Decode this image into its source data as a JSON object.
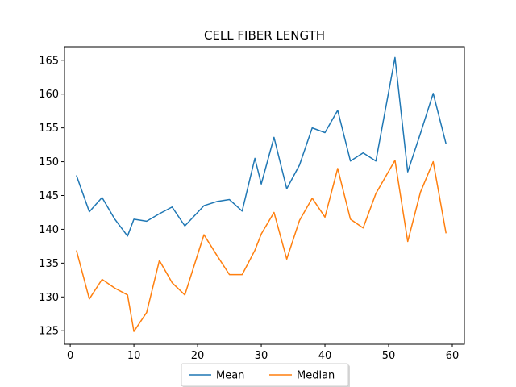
{
  "chart_data": {
    "type": "line",
    "title": "CELL FIBER LENGTH",
    "xlabel": "",
    "ylabel": "",
    "xlim": [
      -0.9,
      61.9
    ],
    "ylim": [
      123.0,
      167.0
    ],
    "xticks": [
      0,
      10,
      20,
      30,
      40,
      50,
      60
    ],
    "yticks": [
      125,
      130,
      135,
      140,
      145,
      150,
      155,
      160,
      165
    ],
    "grid": false,
    "legend_position": "bottom-center",
    "x": [
      1,
      3,
      5,
      7,
      9,
      10,
      12,
      14,
      16,
      18,
      21,
      23,
      25,
      27,
      29,
      30,
      32,
      34,
      36,
      38,
      40,
      42,
      44,
      46,
      48,
      51,
      53,
      55,
      57,
      59
    ],
    "series": [
      {
        "name": "Mean",
        "color": "#1f77b4",
        "values": [
          147.9,
          142.6,
          144.7,
          141.5,
          139.0,
          141.5,
          141.2,
          142.3,
          143.3,
          140.5,
          143.5,
          144.1,
          144.4,
          142.7,
          150.5,
          146.7,
          153.6,
          146.0,
          149.5,
          155.0,
          154.3,
          157.6,
          150.1,
          151.3,
          150.1,
          165.4,
          148.5,
          154.2,
          160.1,
          152.7
        ]
      },
      {
        "name": "Median",
        "color": "#ff7f0e",
        "values": [
          136.8,
          129.7,
          132.6,
          131.3,
          130.3,
          124.9,
          127.7,
          135.4,
          132.1,
          130.3,
          139.2,
          136.2,
          133.3,
          133.3,
          136.9,
          139.3,
          142.5,
          135.6,
          141.3,
          144.6,
          141.8,
          149.0,
          141.5,
          140.2,
          145.3,
          150.2,
          138.2,
          145.5,
          150.0,
          139.5
        ]
      }
    ]
  }
}
